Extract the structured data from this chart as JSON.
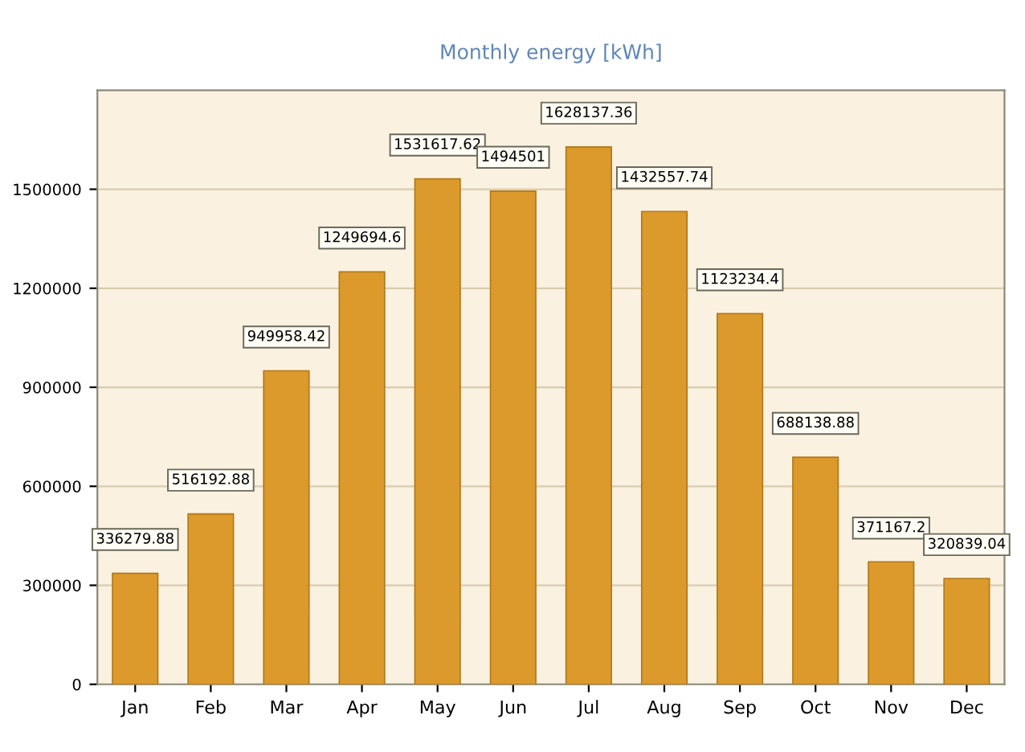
{
  "chart_data": {
    "type": "bar",
    "title": "Monthly energy [kWh]",
    "categories": [
      "Jan",
      "Feb",
      "Mar",
      "Apr",
      "May",
      "Jun",
      "Jul",
      "Aug",
      "Sep",
      "Oct",
      "Nov",
      "Dec"
    ],
    "values": [
      336279.88,
      516192.88,
      949958.42,
      1249694.6,
      1531617.62,
      1494501,
      1628137.36,
      1432557.74,
      1123234.4,
      688138.88,
      371167.2,
      320839.04
    ],
    "color": "#dc9a2c",
    "ylim": [
      0,
      1800000
    ],
    "yticks": [
      0,
      300000,
      600000,
      900000,
      1200000,
      1500000
    ],
    "grid": "y",
    "data_labels": true,
    "legend": false
  }
}
